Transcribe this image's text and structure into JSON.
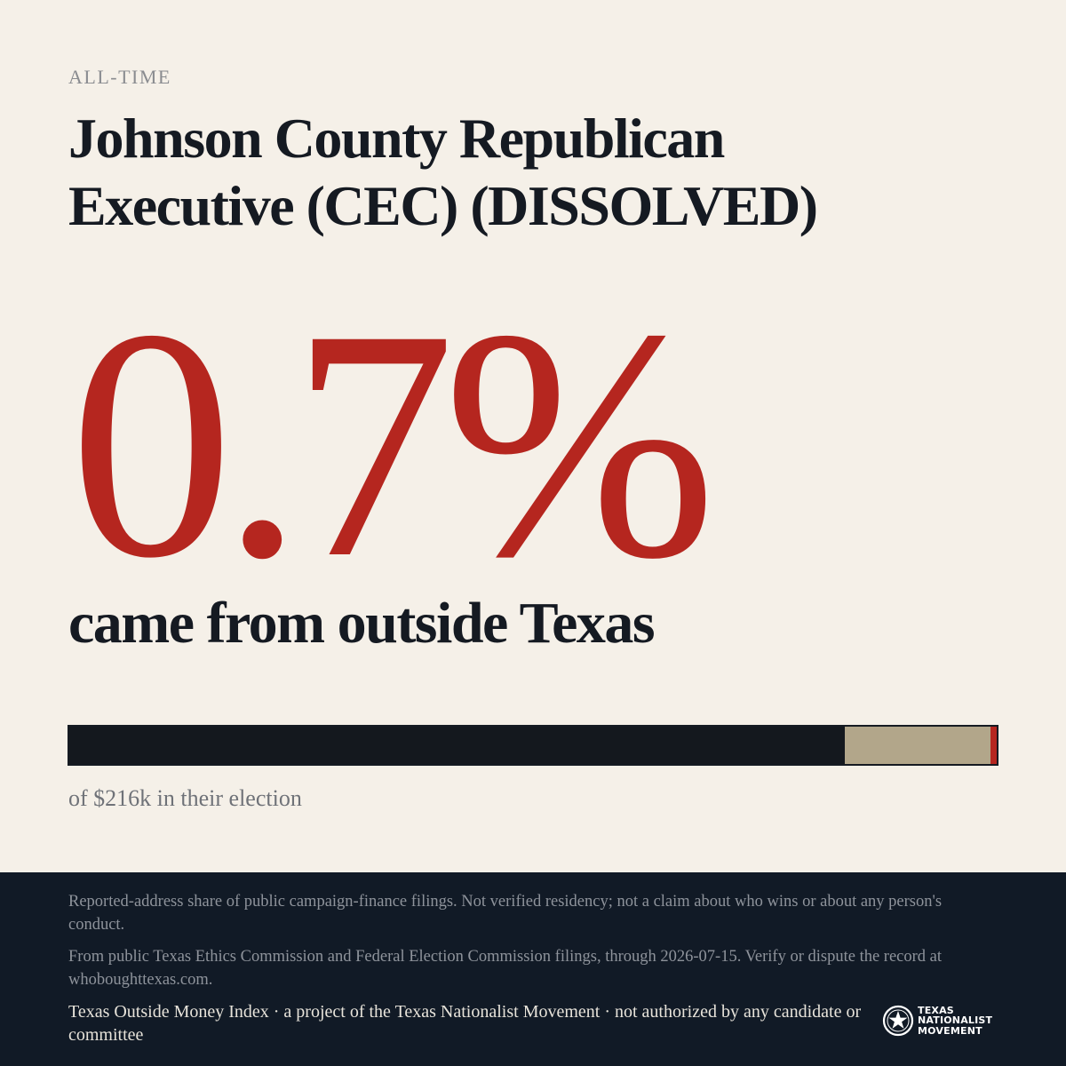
{
  "eyebrow": "ALL-TIME",
  "title_line1": "Johnson County Republican",
  "title_line2": "Executive (CEC) (DISSOLVED)",
  "headline_value": "0.7%",
  "headline_text": "came from outside Texas",
  "bar": {
    "segments": [
      {
        "name": "texas",
        "share": 0.836,
        "color": "#14181e"
      },
      {
        "name": "unreported",
        "share": 0.157,
        "color": "#b2a68a"
      },
      {
        "name": "outside-texas",
        "share": 0.007,
        "color": "#b5261f"
      }
    ]
  },
  "caption": "of $216k in their election",
  "footer": {
    "disclaimer1": "Reported-address share of public campaign-finance filings. Not verified residency; not a claim about who wins or about any person's conduct.",
    "disclaimer2": "From public Texas Ethics Commission and Federal Election Commission filings, through 2026-07-15. Verify or dispute the record at whoboughttexas.com.",
    "credit": "Texas Outside Money Index · a project of the Texas Nationalist Movement · not authorized by any candidate or committee",
    "logo_lines": [
      "TEXAS",
      "NATIONALIST",
      "MOVEMENT"
    ],
    "logo_icon": "star-seal-icon"
  },
  "colors": {
    "accent": "#b5261f",
    "ink": "#151a22",
    "paper": "#f5f0e8",
    "footer_bg": "#111a26"
  }
}
